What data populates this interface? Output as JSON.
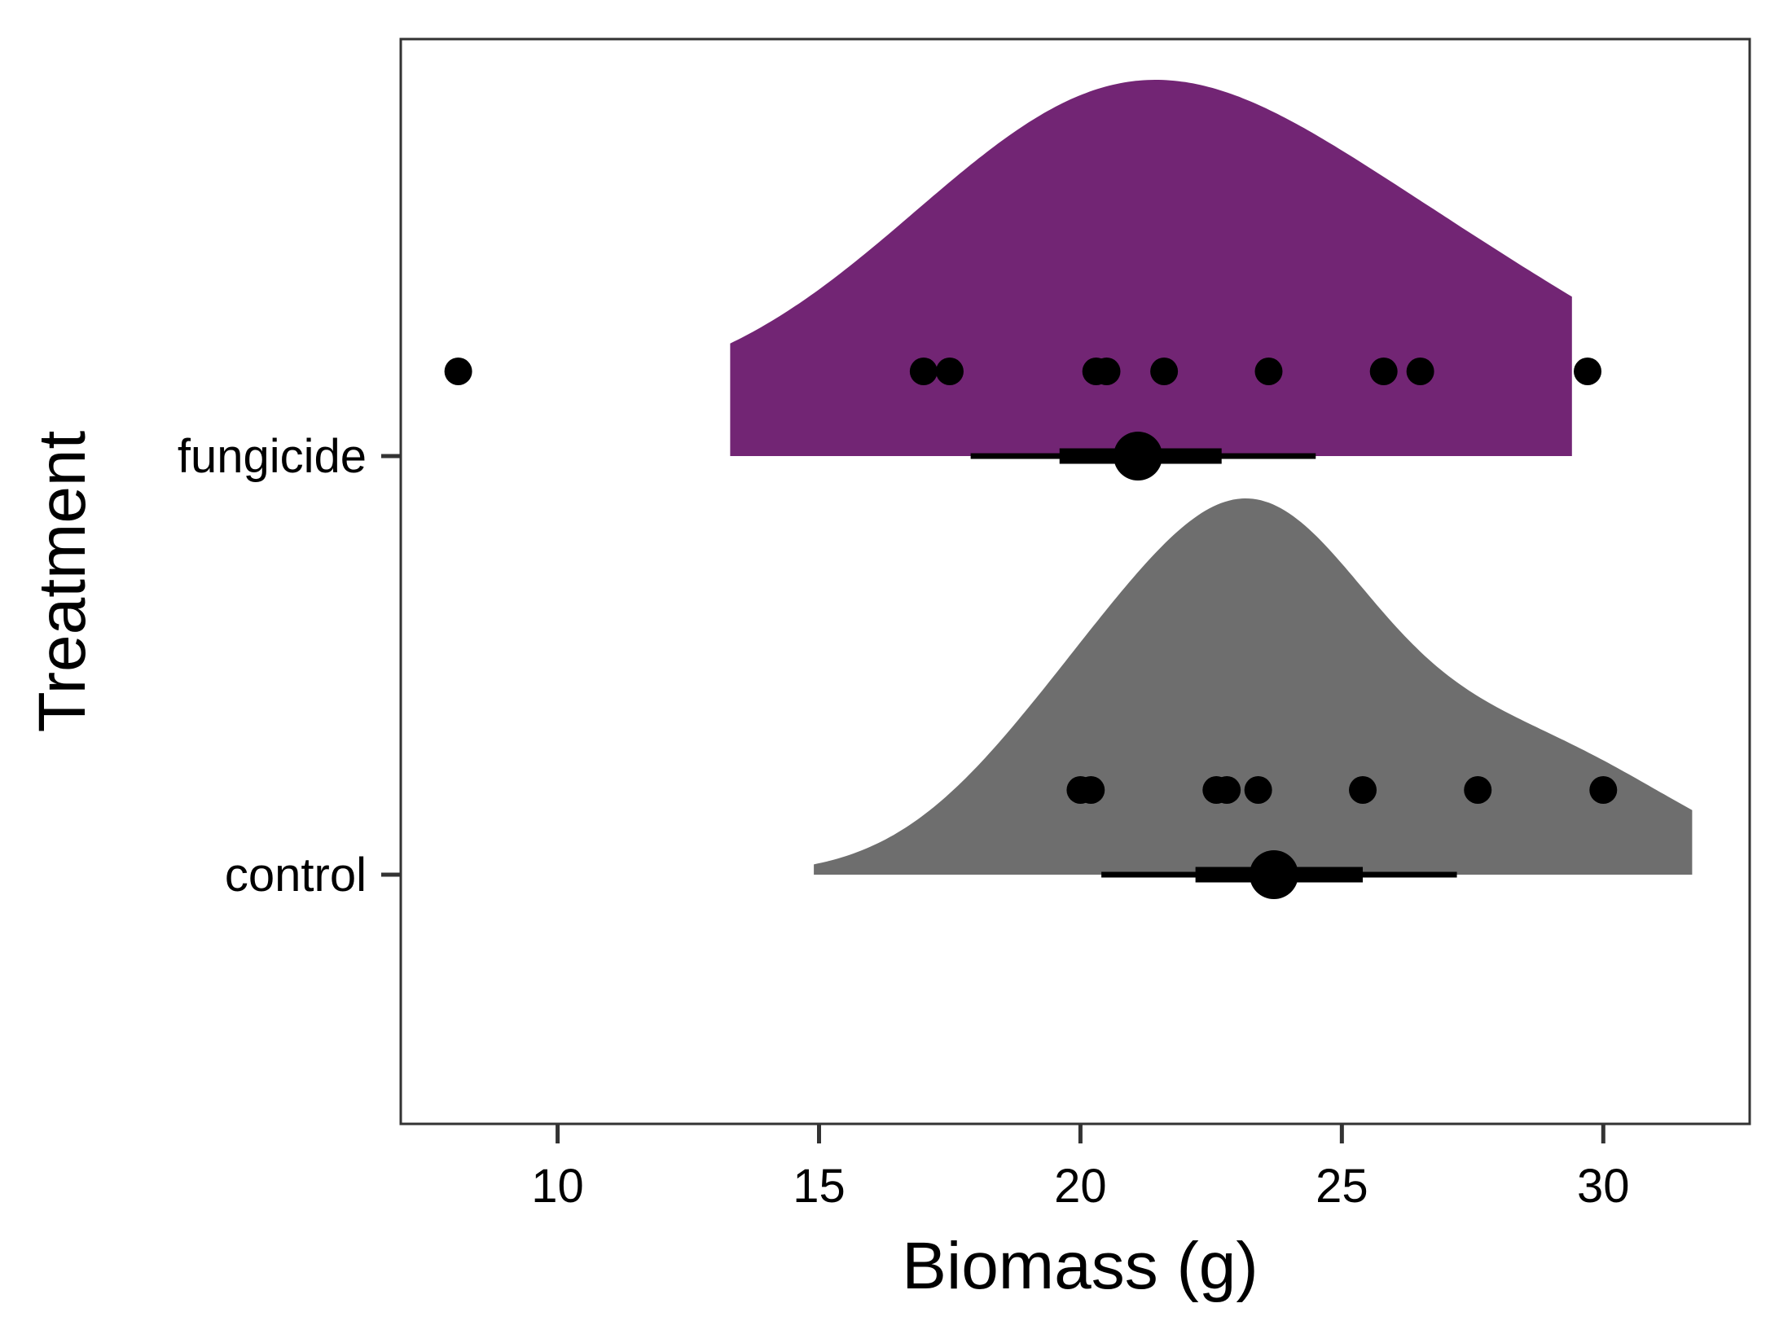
{
  "chart_data": {
    "type": "halfeye",
    "xlabel": "Biomass (g)",
    "ylabel": "Treatment",
    "xlim": [
      7,
      32.8
    ],
    "x_ticks": [
      10,
      15,
      20,
      25,
      30
    ],
    "x_tick_labels": [
      "10",
      "15",
      "20",
      "25",
      "30"
    ],
    "categories": [
      "fungicide",
      "control"
    ],
    "grid": false,
    "legend": "none",
    "series": [
      {
        "category": "fungicide",
        "color": "#722574",
        "points": [
          8.1,
          17.0,
          17.5,
          20.3,
          20.5,
          21.6,
          23.6,
          25.8,
          26.5,
          29.7
        ],
        "median": 21.1,
        "interval_66": [
          19.6,
          22.7
        ],
        "interval_95": [
          17.9,
          24.5
        ],
        "density_range": [
          13.3,
          29.4
        ],
        "density_peak": 21.1
      },
      {
        "category": "control",
        "color": "#6e6e6e",
        "points": [
          20.0,
          20.2,
          22.6,
          22.8,
          23.4,
          25.4,
          27.6,
          30.0
        ],
        "median": 23.7,
        "interval_66": [
          22.2,
          25.4
        ],
        "interval_95": [
          20.4,
          27.2
        ],
        "density_range": [
          14.9,
          31.7
        ],
        "density_peak": 23.7
      }
    ]
  }
}
